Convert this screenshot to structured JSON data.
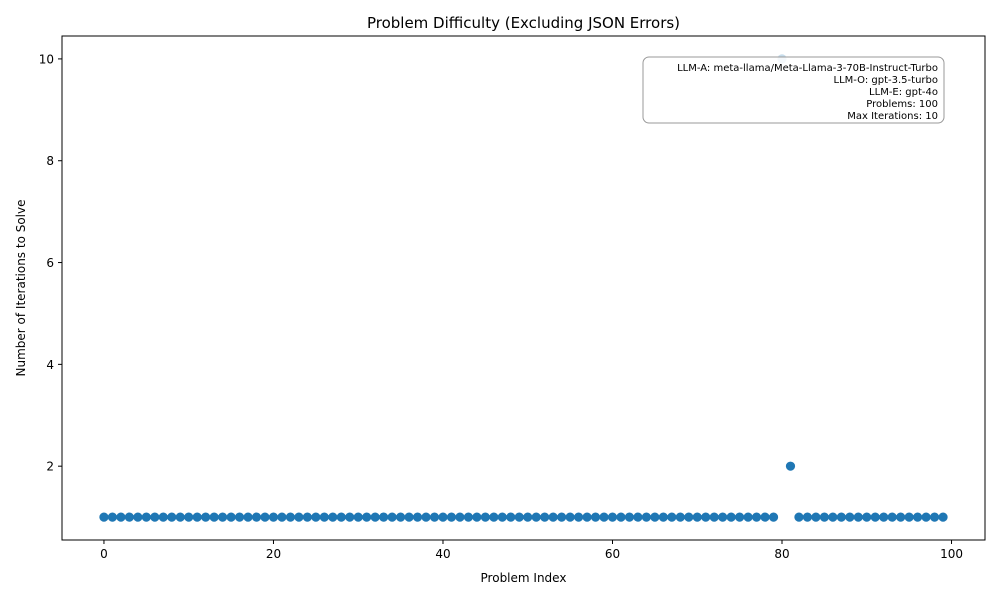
{
  "chart_data": {
    "type": "scatter",
    "title": "Problem Difficulty (Excluding JSON Errors)",
    "xlabel": "Problem Index",
    "ylabel": "Number of Iterations to Solve",
    "xlim": [
      -4.95,
      103.95
    ],
    "ylim": [
      0.55,
      10.45
    ],
    "xticks": [
      0,
      20,
      40,
      60,
      80,
      100
    ],
    "yticks": [
      2,
      4,
      6,
      8,
      10
    ],
    "grid": false,
    "marker_color": "#1f77b4",
    "points": [
      [
        0,
        1
      ],
      [
        1,
        1
      ],
      [
        2,
        1
      ],
      [
        3,
        1
      ],
      [
        4,
        1
      ],
      [
        5,
        1
      ],
      [
        6,
        1
      ],
      [
        7,
        1
      ],
      [
        8,
        1
      ],
      [
        9,
        1
      ],
      [
        10,
        1
      ],
      [
        11,
        1
      ],
      [
        12,
        1
      ],
      [
        13,
        1
      ],
      [
        14,
        1
      ],
      [
        15,
        1
      ],
      [
        16,
        1
      ],
      [
        17,
        1
      ],
      [
        18,
        1
      ],
      [
        19,
        1
      ],
      [
        20,
        1
      ],
      [
        21,
        1
      ],
      [
        22,
        1
      ],
      [
        23,
        1
      ],
      [
        24,
        1
      ],
      [
        25,
        1
      ],
      [
        26,
        1
      ],
      [
        27,
        1
      ],
      [
        28,
        1
      ],
      [
        29,
        1
      ],
      [
        30,
        1
      ],
      [
        31,
        1
      ],
      [
        32,
        1
      ],
      [
        33,
        1
      ],
      [
        34,
        1
      ],
      [
        35,
        1
      ],
      [
        36,
        1
      ],
      [
        37,
        1
      ],
      [
        38,
        1
      ],
      [
        39,
        1
      ],
      [
        40,
        1
      ],
      [
        41,
        1
      ],
      [
        42,
        1
      ],
      [
        43,
        1
      ],
      [
        44,
        1
      ],
      [
        45,
        1
      ],
      [
        46,
        1
      ],
      [
        47,
        1
      ],
      [
        48,
        1
      ],
      [
        49,
        1
      ],
      [
        50,
        1
      ],
      [
        51,
        1
      ],
      [
        52,
        1
      ],
      [
        53,
        1
      ],
      [
        54,
        1
      ],
      [
        55,
        1
      ],
      [
        56,
        1
      ],
      [
        57,
        1
      ],
      [
        58,
        1
      ],
      [
        59,
        1
      ],
      [
        60,
        1
      ],
      [
        61,
        1
      ],
      [
        62,
        1
      ],
      [
        63,
        1
      ],
      [
        64,
        1
      ],
      [
        65,
        1
      ],
      [
        66,
        1
      ],
      [
        67,
        1
      ],
      [
        68,
        1
      ],
      [
        69,
        1
      ],
      [
        70,
        1
      ],
      [
        71,
        1
      ],
      [
        72,
        1
      ],
      [
        73,
        1
      ],
      [
        74,
        1
      ],
      [
        75,
        1
      ],
      [
        76,
        1
      ],
      [
        77,
        1
      ],
      [
        78,
        1
      ],
      [
        79,
        1
      ],
      [
        80,
        10
      ],
      [
        81,
        2
      ],
      [
        82,
        1
      ],
      [
        83,
        1
      ],
      [
        84,
        1
      ],
      [
        85,
        1
      ],
      [
        86,
        1
      ],
      [
        87,
        1
      ],
      [
        88,
        1
      ],
      [
        89,
        1
      ],
      [
        90,
        1
      ],
      [
        91,
        1
      ],
      [
        92,
        1
      ],
      [
        93,
        1
      ],
      [
        94,
        1
      ],
      [
        95,
        1
      ],
      [
        96,
        1
      ],
      [
        97,
        1
      ],
      [
        98,
        1
      ],
      [
        99,
        1
      ]
    ],
    "annotation": {
      "position": "top-right",
      "lines": [
        "LLM-A: meta-llama/Meta-Llama-3-70B-Instruct-Turbo",
        "LLM-O: gpt-3.5-turbo",
        "LLM-E: gpt-4o",
        "Problems: 100",
        "Max Iterations: 10"
      ]
    }
  }
}
